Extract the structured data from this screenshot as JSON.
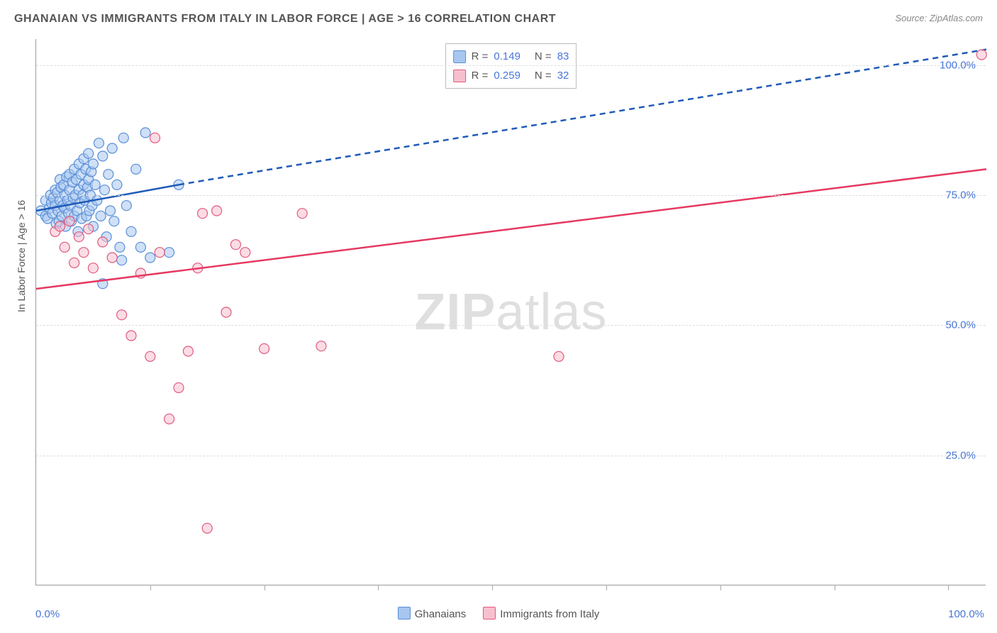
{
  "title": "GHANAIAN VS IMMIGRANTS FROM ITALY IN LABOR FORCE | AGE > 16 CORRELATION CHART",
  "source_label": "Source: ZipAtlas.com",
  "y_axis_label": "In Labor Force | Age > 16",
  "watermark": {
    "bold": "ZIP",
    "light": "atlas"
  },
  "chart": {
    "type": "scatter",
    "background_color": "#ffffff",
    "grid_color": "#dddddd",
    "axis_color": "#999999",
    "text_color": "#555555",
    "accent_text_color": "#4876d6",
    "xlim": [
      0,
      100
    ],
    "ylim": [
      0,
      105
    ],
    "y_ticks": [
      {
        "value": 25,
        "label": "25.0%"
      },
      {
        "value": 50,
        "label": "50.0%"
      },
      {
        "value": 75,
        "label": "75.0%"
      },
      {
        "value": 100,
        "label": "100.0%"
      }
    ],
    "x_tick_positions": [
      12,
      24,
      36,
      48,
      60,
      72,
      84,
      96
    ],
    "x_start_label": "0.0%",
    "x_end_label": "100.0%",
    "marker_radius": 7,
    "marker_stroke_width": 1.2,
    "series": [
      {
        "id": "ghanaians",
        "label": "Ghanaians",
        "fill": "#a7c7f0",
        "stroke": "#5a8fd6",
        "fill_opacity": 0.55,
        "R": "0.149",
        "N": "83",
        "trend_line": {
          "solid": {
            "x1": 0,
            "y1": 72,
            "x2": 15,
            "y2": 77
          },
          "dashed": {
            "x1": 15,
            "y1": 77,
            "x2": 100,
            "y2": 103
          },
          "color": "#1e5bb8",
          "width": 2.5
        },
        "points": [
          [
            0.5,
            72
          ],
          [
            1,
            74
          ],
          [
            1,
            71
          ],
          [
            1.2,
            70.5
          ],
          [
            1.4,
            72.5
          ],
          [
            1.5,
            75
          ],
          [
            1.6,
            73.5
          ],
          [
            1.7,
            71.5
          ],
          [
            1.8,
            74.5
          ],
          [
            2,
            76
          ],
          [
            2,
            73
          ],
          [
            2.1,
            69.5
          ],
          [
            2.2,
            75.5
          ],
          [
            2.3,
            72
          ],
          [
            2.4,
            70
          ],
          [
            2.5,
            78
          ],
          [
            2.5,
            74
          ],
          [
            2.6,
            76.5
          ],
          [
            2.7,
            71
          ],
          [
            2.8,
            73
          ],
          [
            2.9,
            77
          ],
          [
            3,
            75
          ],
          [
            3,
            72.5
          ],
          [
            3.1,
            69
          ],
          [
            3.2,
            78.5
          ],
          [
            3.3,
            74
          ],
          [
            3.4,
            71.5
          ],
          [
            3.5,
            79
          ],
          [
            3.5,
            76
          ],
          [
            3.6,
            73
          ],
          [
            3.7,
            70
          ],
          [
            3.8,
            77.5
          ],
          [
            3.9,
            74.5
          ],
          [
            4,
            80
          ],
          [
            4,
            71
          ],
          [
            4.1,
            75
          ],
          [
            4.2,
            78
          ],
          [
            4.3,
            72
          ],
          [
            4.4,
            68
          ],
          [
            4.5,
            81
          ],
          [
            4.5,
            76
          ],
          [
            4.6,
            73.5
          ],
          [
            4.7,
            79
          ],
          [
            4.8,
            70.5
          ],
          [
            4.9,
            75
          ],
          [
            5,
            82
          ],
          [
            5,
            77
          ],
          [
            5.1,
            74
          ],
          [
            5.2,
            80
          ],
          [
            5.3,
            71
          ],
          [
            5.4,
            76.5
          ],
          [
            5.5,
            83
          ],
          [
            5.5,
            78
          ],
          [
            5.6,
            72
          ],
          [
            5.7,
            75
          ],
          [
            5.8,
            79.5
          ],
          [
            5.9,
            73
          ],
          [
            6,
            81
          ],
          [
            6,
            69
          ],
          [
            6.2,
            77
          ],
          [
            6.4,
            74
          ],
          [
            6.6,
            85
          ],
          [
            6.8,
            71
          ],
          [
            7,
            82.5
          ],
          [
            7.2,
            76
          ],
          [
            7.4,
            67
          ],
          [
            7.6,
            79
          ],
          [
            7.8,
            72
          ],
          [
            8,
            84
          ],
          [
            8.2,
            70
          ],
          [
            8.5,
            77
          ],
          [
            8.8,
            65
          ],
          [
            9,
            62.5
          ],
          [
            9.2,
            86
          ],
          [
            9.5,
            73
          ],
          [
            10,
            68
          ],
          [
            10.5,
            80
          ],
          [
            11,
            65
          ],
          [
            11.5,
            87
          ],
          [
            12,
            63
          ],
          [
            14,
            64
          ],
          [
            15,
            77
          ],
          [
            7,
            58
          ]
        ]
      },
      {
        "id": "immigrants_italy",
        "label": "Immigrants from Italy",
        "fill": "#f7c0cf",
        "stroke": "#e05a7d",
        "fill_opacity": 0.55,
        "R": "0.259",
        "N": "32",
        "trend_line": {
          "solid": {
            "x1": 0,
            "y1": 57,
            "x2": 100,
            "y2": 80
          },
          "color": "#e53962",
          "width": 2.5
        },
        "points": [
          [
            2,
            68
          ],
          [
            2.5,
            69
          ],
          [
            3,
            65
          ],
          [
            3.5,
            70
          ],
          [
            4,
            62
          ],
          [
            4.5,
            67
          ],
          [
            5,
            64
          ],
          [
            5.5,
            68.5
          ],
          [
            6,
            61
          ],
          [
            7,
            66
          ],
          [
            8,
            63
          ],
          [
            9,
            52
          ],
          [
            10,
            48
          ],
          [
            11,
            60
          ],
          [
            12,
            44
          ],
          [
            12.5,
            86
          ],
          [
            13,
            64
          ],
          [
            14,
            32
          ],
          [
            15,
            38
          ],
          [
            16,
            45
          ],
          [
            17,
            61
          ],
          [
            17.5,
            71.5
          ],
          [
            18,
            11
          ],
          [
            19,
            72
          ],
          [
            20,
            52.5
          ],
          [
            21,
            65.5
          ],
          [
            22,
            64
          ],
          [
            24,
            45.5
          ],
          [
            28,
            71.5
          ],
          [
            30,
            46
          ],
          [
            55,
            44
          ],
          [
            99.5,
            102
          ]
        ]
      }
    ],
    "bottom_legend": [
      {
        "swatch_fill": "#a7c7f0",
        "swatch_stroke": "#5a8fd6",
        "text": "Ghanaians"
      },
      {
        "swatch_fill": "#f7c0cf",
        "swatch_stroke": "#e05a7d",
        "text": "Immigrants from Italy"
      }
    ]
  }
}
